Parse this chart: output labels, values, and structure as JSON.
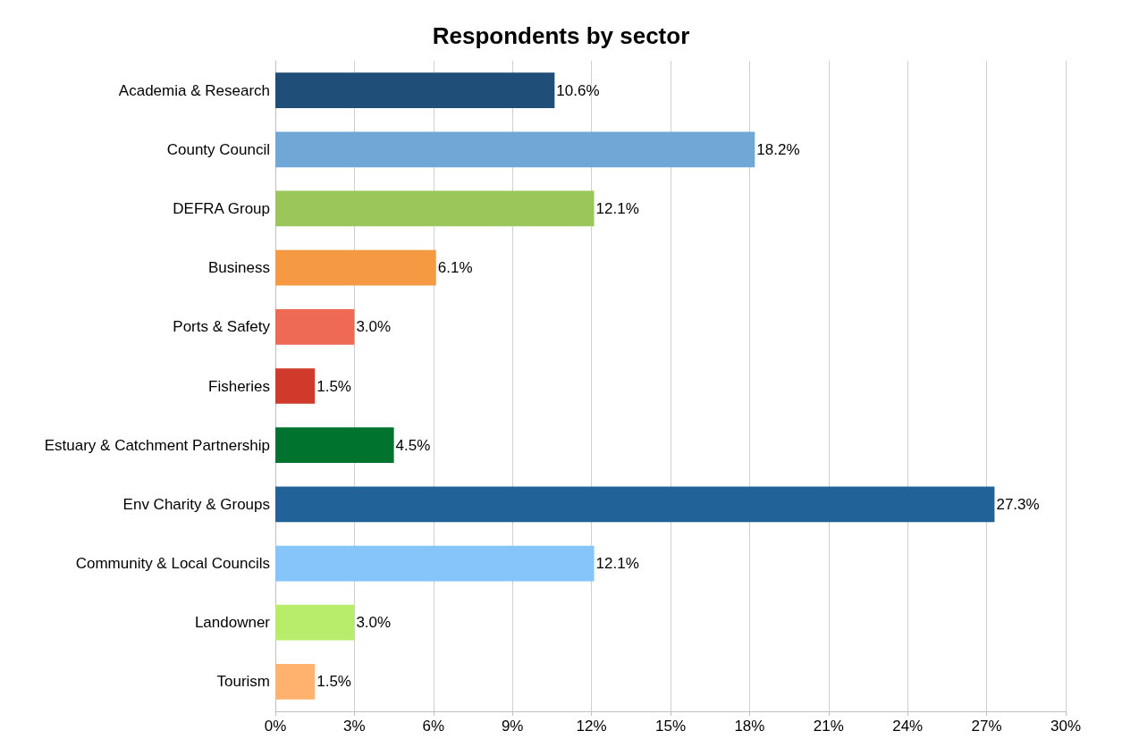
{
  "chart_data": {
    "type": "bar",
    "orientation": "horizontal",
    "title": "Respondents by sector",
    "categories": [
      "Academia & Research",
      "County Council",
      "DEFRA Group",
      "Business",
      "Ports & Safety",
      "Fisheries",
      "Estuary & Catchment Partnership",
      "Env Charity & Groups",
      "Community & Local Councils",
      "Landowner",
      "Tourism"
    ],
    "values": [
      10.6,
      18.2,
      12.1,
      6.1,
      3.0,
      1.5,
      4.5,
      27.3,
      12.1,
      3.0,
      1.5
    ],
    "value_labels": [
      "10.6%",
      "18.2%",
      "12.1%",
      "6.1%",
      "3.0%",
      "1.5%",
      "4.5%",
      "27.3%",
      "12.1%",
      "3.0%",
      "1.5%"
    ],
    "colors": [
      "#1f4e79",
      "#6fa8d6",
      "#9bc75a",
      "#f59a42",
      "#ee6a55",
      "#cf3a2a",
      "#00732f",
      "#216399",
      "#85c5fa",
      "#b8ed6b",
      "#ffb26e"
    ],
    "xlim": [
      0,
      30
    ],
    "xticks": [
      {
        "value": 0,
        "label": "0%"
      },
      {
        "value": 3,
        "label": "3%"
      },
      {
        "value": 6,
        "label": "6%"
      },
      {
        "value": 9,
        "label": "9%"
      },
      {
        "value": 12,
        "label": "12%"
      },
      {
        "value": 15,
        "label": "15%"
      },
      {
        "value": 18,
        "label": "18%"
      },
      {
        "value": 21,
        "label": "21%"
      },
      {
        "value": 24,
        "label": "24%"
      },
      {
        "value": 27,
        "label": "27%"
      },
      {
        "value": 30,
        "label": "30%"
      }
    ],
    "grid": "x"
  }
}
